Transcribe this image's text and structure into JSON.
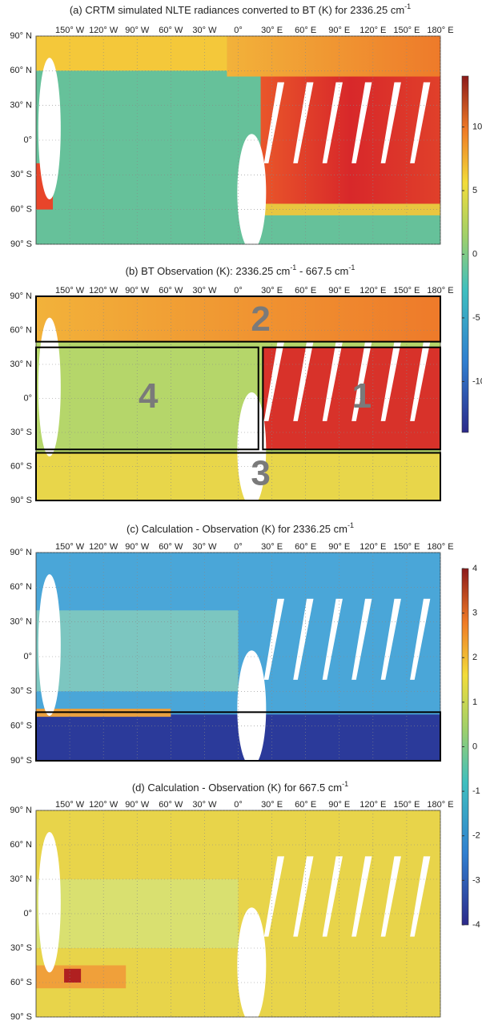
{
  "panels": [
    {
      "title": [
        {
          "text": "(a) CRTM simulated NLTE radiances converted to BT (K) for 2336.25 cm"
        },
        {
          "text": "-1",
          "sup": true
        }
      ]
    },
    {
      "title": [
        {
          "text": "(b) BT Observation (K): 2336.25 cm"
        },
        {
          "text": "-1",
          "sup": true
        },
        {
          "text": " - 667.5 cm"
        },
        {
          "text": "-1",
          "sup": true
        }
      ],
      "regions": [
        "1",
        "2",
        "3",
        "4"
      ]
    },
    {
      "title": [
        {
          "text": "(c) Calculation - Observation (K) for 2336.25 cm"
        },
        {
          "text": "-1",
          "sup": true
        }
      ]
    },
    {
      "title": [
        {
          "text": "(d) Calculation - Observation (K) for 667.5 cm"
        },
        {
          "text": "-1",
          "sup": true
        }
      ]
    }
  ],
  "lon_labels": [
    "150° W",
    "120° W",
    "90° W",
    "60° W",
    "30° W",
    "0°",
    "30° E",
    "60° E",
    "90° E",
    "120° E",
    "150° E",
    "180° E"
  ],
  "lat_labels": [
    "90° N",
    "60° N",
    "30° N",
    "0°",
    "30° S",
    "60° S",
    "90° S"
  ],
  "colorbars": [
    {
      "lim": [
        -14,
        14
      ],
      "ticks": [
        10,
        5,
        0,
        -5,
        -10
      ]
    },
    {
      "lim": [
        -4,
        4
      ],
      "ticks": [
        4,
        3,
        2,
        1,
        0,
        -1,
        -2,
        -3,
        -4
      ]
    }
  ]
}
